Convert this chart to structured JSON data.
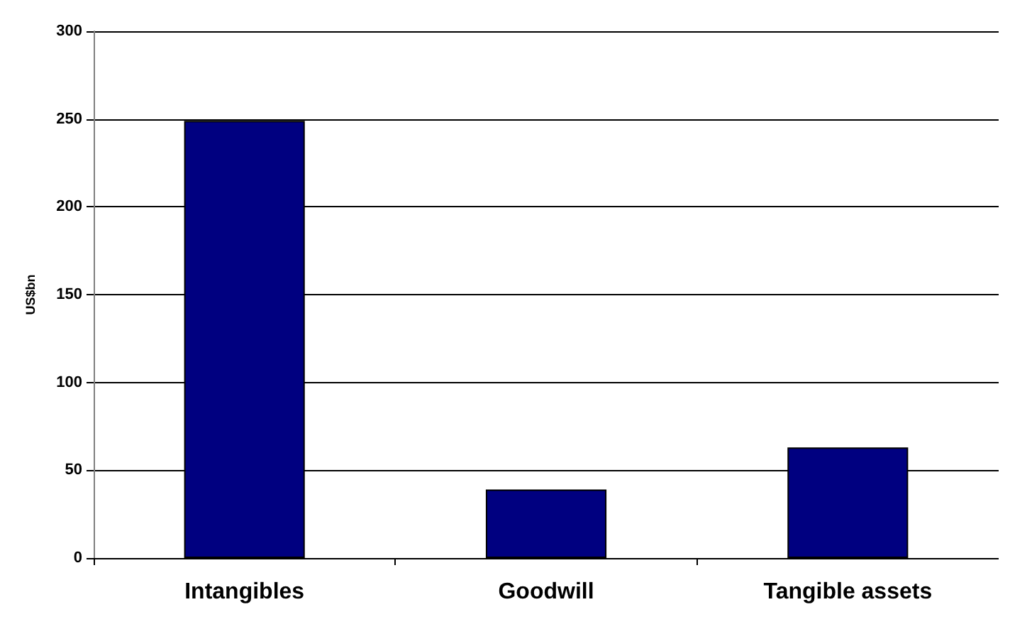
{
  "chart_data": {
    "type": "bar",
    "ylabel": "US$bn",
    "categories": [
      "Intangibles",
      "Goodwill",
      "Tangible assets"
    ],
    "values": [
      249,
      39,
      63
    ],
    "color": "#000080",
    "ylim": [
      0,
      300
    ],
    "yticks": [
      0,
      50,
      100,
      150,
      200,
      250,
      300
    ],
    "grid": "y"
  }
}
